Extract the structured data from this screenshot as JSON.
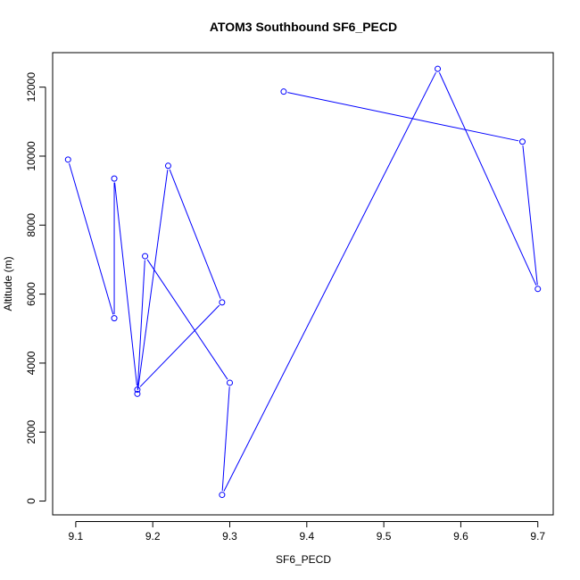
{
  "chart_data": {
    "type": "line",
    "title": "ATOM3 Southbound SF6_PECD",
    "xlabel": "SF6_PECD",
    "ylabel": "Altitude (m)",
    "xlim": [
      9.07,
      9.72
    ],
    "ylim": [
      -400,
      13000
    ],
    "grid": false,
    "legend": "none",
    "x_ticks": [
      9.1,
      9.2,
      9.3,
      9.4,
      9.5,
      9.6,
      9.7
    ],
    "x_tick_labels": [
      "9.1",
      "9.2",
      "9.3",
      "9.4",
      "9.5",
      "9.6",
      "9.7"
    ],
    "y_ticks": [
      0,
      2000,
      4000,
      6000,
      8000,
      10000,
      12000
    ],
    "y_tick_labels": [
      "0",
      "2000",
      "4000",
      "6000",
      "8000",
      "10000",
      "12000"
    ],
    "series": [
      {
        "color": "#0000ff",
        "marker": "open-circle",
        "line": "solid",
        "x": [
          9.37,
          9.68,
          9.7,
          9.57,
          9.29,
          9.3,
          9.19,
          9.18,
          9.22,
          9.29,
          9.18,
          9.15,
          9.15,
          9.09
        ],
        "y": [
          11870,
          10420,
          6150,
          12530,
          180,
          3430,
          7100,
          3110,
          9720,
          5760,
          3230,
          9350,
          5300,
          9900
        ]
      }
    ]
  }
}
